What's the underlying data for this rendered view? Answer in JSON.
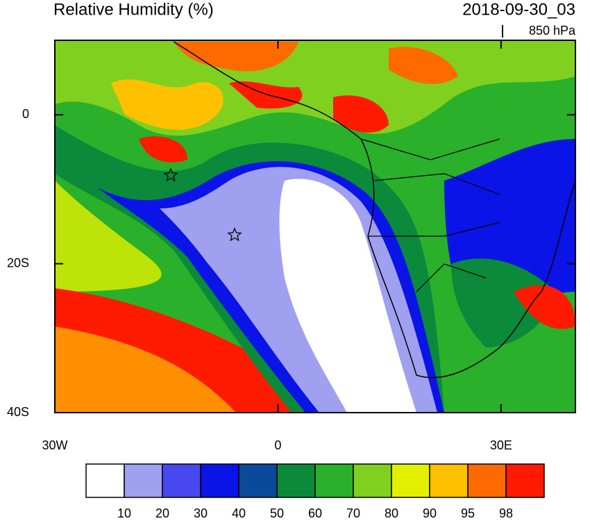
{
  "title": "Relative Humidity (%)",
  "timestamp": "2018-09-30_03",
  "level": "850 hPa",
  "map": {
    "xlim": [
      -30,
      40
    ],
    "ylim": [
      -40,
      10
    ],
    "xticks": [
      {
        "value": -30,
        "label": "30W"
      },
      0,
      {
        "value": 30,
        "label": "30E"
      }
    ],
    "yticks": [
      0,
      {
        "value": -20,
        "label": "20S"
      },
      {
        "value": -40,
        "label": "40S"
      }
    ]
  },
  "colorbar": {
    "colors": [
      "#ffffff",
      "#a0a0f0",
      "#4848f0",
      "#0a14e6",
      "#0a4a9a",
      "#0a8a3a",
      "#2ab02a",
      "#80d020",
      "#e2f000",
      "#ffc000",
      "#ff6a00",
      "#ff1a00"
    ],
    "ticks": [
      10,
      20,
      30,
      40,
      50,
      60,
      70,
      80,
      90,
      95,
      98
    ]
  }
}
